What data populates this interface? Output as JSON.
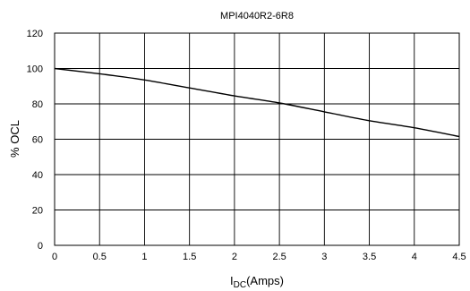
{
  "chart_data": {
    "type": "line",
    "title": "MPI4040R2-6R8",
    "xlabel_main": "I",
    "xlabel_sub": "DC",
    "xlabel_rest": "(Amps)",
    "ylabel": "% OCL",
    "xlim": [
      0,
      4.5
    ],
    "ylim": [
      0,
      120
    ],
    "x_ticks": [
      "0",
      "0.5",
      "1",
      "1.5",
      "2",
      "2.5",
      "3",
      "3.5",
      "4",
      "4.5"
    ],
    "y_ticks": [
      "0",
      "20",
      "40",
      "60",
      "80",
      "100",
      "120"
    ],
    "grid": true,
    "series": [
      {
        "x": [
          0,
          0.5,
          1,
          1.5,
          2,
          2.5,
          3,
          3.5,
          4,
          4.5
        ],
        "y": [
          100,
          97,
          93.5,
          89,
          84.5,
          80.5,
          75.5,
          70.5,
          66.5,
          61.5
        ]
      }
    ]
  }
}
